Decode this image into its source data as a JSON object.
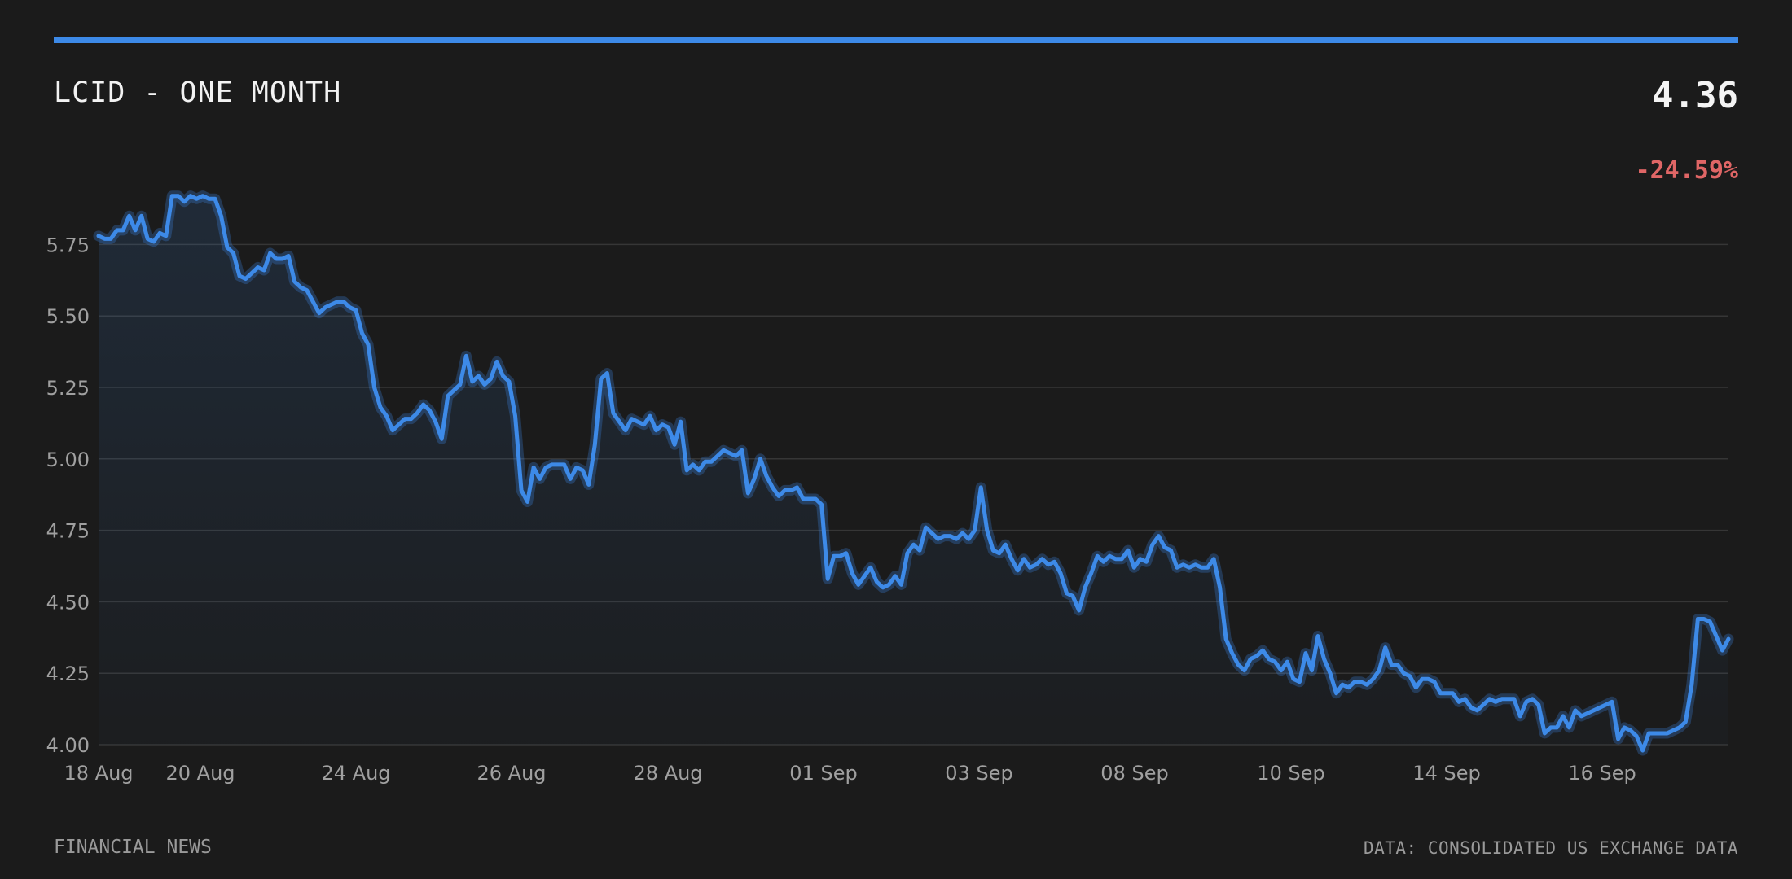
{
  "header": {
    "title": "LCID - ONE MONTH",
    "price": "4.36",
    "change": "-24.59%"
  },
  "footer": {
    "source_left": "FINANCIAL NEWS",
    "source_right": "DATA: CONSOLIDATED US EXCHANGE DATA"
  },
  "colors": {
    "accent": "#3d8ae8",
    "negative": "#e06666",
    "background": "#1b1b1b"
  },
  "chart_data": {
    "type": "area",
    "title": "LCID - ONE MONTH",
    "xlabel": "",
    "ylabel": "",
    "ylim": [
      4.0,
      5.9
    ],
    "yticks": [
      "4.00",
      "4.25",
      "4.50",
      "4.75",
      "5.00",
      "5.25",
      "5.50",
      "5.75"
    ],
    "xticks": [
      "18 Aug",
      "20 Aug",
      "24 Aug",
      "26 Aug",
      "28 Aug",
      "01 Sep",
      "03 Sep",
      "08 Sep",
      "10 Sep",
      "14 Sep",
      "16 Sep"
    ],
    "grid": true,
    "series": [
      {
        "values": [
          5.78,
          5.77,
          5.77,
          5.8,
          5.8,
          5.85,
          5.8,
          5.85,
          5.77,
          5.76,
          5.79,
          5.78,
          5.92,
          5.92,
          5.9,
          5.92,
          5.91,
          5.92,
          5.91,
          5.91,
          5.85,
          5.74,
          5.72,
          5.64,
          5.63,
          5.65,
          5.67,
          5.66,
          5.72,
          5.7,
          5.7,
          5.71,
          5.62,
          5.6,
          5.59,
          5.55,
          5.51,
          5.53,
          5.54,
          5.55,
          5.55,
          5.53,
          5.52,
          5.44,
          5.4,
          5.25,
          5.18,
          5.15,
          5.1,
          5.12,
          5.14,
          5.14,
          5.16,
          5.19,
          5.17,
          5.13,
          5.07,
          5.22,
          5.24,
          5.26,
          5.36,
          5.27,
          5.29,
          5.26,
          5.28,
          5.34,
          5.29,
          5.27,
          5.15,
          4.89,
          4.85,
          4.97,
          4.93,
          4.97,
          4.98,
          4.98,
          4.98,
          4.93,
          4.97,
          4.96,
          4.91,
          5.05,
          5.28,
          5.3,
          5.16,
          5.13,
          5.1,
          5.14,
          5.13,
          5.12,
          5.15,
          5.1,
          5.12,
          5.11,
          5.05,
          5.13,
          4.96,
          4.98,
          4.96,
          4.99,
          4.99,
          5.01,
          5.03,
          5.02,
          5.01,
          5.03,
          4.88,
          4.93,
          5.0,
          4.94,
          4.9,
          4.87,
          4.89,
          4.89,
          4.9,
          4.86,
          4.86,
          4.86,
          4.84,
          4.58,
          4.66,
          4.66,
          4.67,
          4.6,
          4.56,
          4.59,
          4.62,
          4.57,
          4.55,
          4.56,
          4.59,
          4.56,
          4.67,
          4.7,
          4.68,
          4.76,
          4.74,
          4.72,
          4.73,
          4.73,
          4.72,
          4.74,
          4.72,
          4.75,
          4.9,
          4.75,
          4.68,
          4.67,
          4.7,
          4.65,
          4.61,
          4.65,
          4.62,
          4.63,
          4.65,
          4.63,
          4.64,
          4.6,
          4.53,
          4.52,
          4.47,
          4.55,
          4.6,
          4.66,
          4.64,
          4.66,
          4.65,
          4.65,
          4.68,
          4.62,
          4.65,
          4.64,
          4.7,
          4.73,
          4.69,
          4.68,
          4.62,
          4.63,
          4.62,
          4.63,
          4.62,
          4.62,
          4.65,
          4.55,
          4.37,
          4.32,
          4.28,
          4.26,
          4.3,
          4.31,
          4.33,
          4.3,
          4.29,
          4.26,
          4.29,
          4.23,
          4.22,
          4.32,
          4.26,
          4.38,
          4.3,
          4.25,
          4.18,
          4.21,
          4.2,
          4.22,
          4.22,
          4.21,
          4.23,
          4.26,
          4.34,
          4.28,
          4.28,
          4.25,
          4.24,
          4.2,
          4.23,
          4.23,
          4.22,
          4.18,
          4.18,
          4.18,
          4.15,
          4.16,
          4.13,
          4.12,
          4.14,
          4.16,
          4.15,
          4.16,
          4.16,
          4.16,
          4.1,
          4.15,
          4.16,
          4.14,
          4.04,
          4.06,
          4.06,
          4.1,
          4.06,
          4.12,
          4.1,
          4.11,
          4.12,
          4.13,
          4.14,
          4.15,
          4.02,
          4.06,
          4.05,
          4.03,
          3.98,
          4.04,
          4.04,
          4.04,
          4.04,
          4.05,
          4.06,
          4.08,
          4.21,
          4.44,
          4.44,
          4.43,
          4.38,
          4.33,
          4.37
        ]
      }
    ]
  }
}
